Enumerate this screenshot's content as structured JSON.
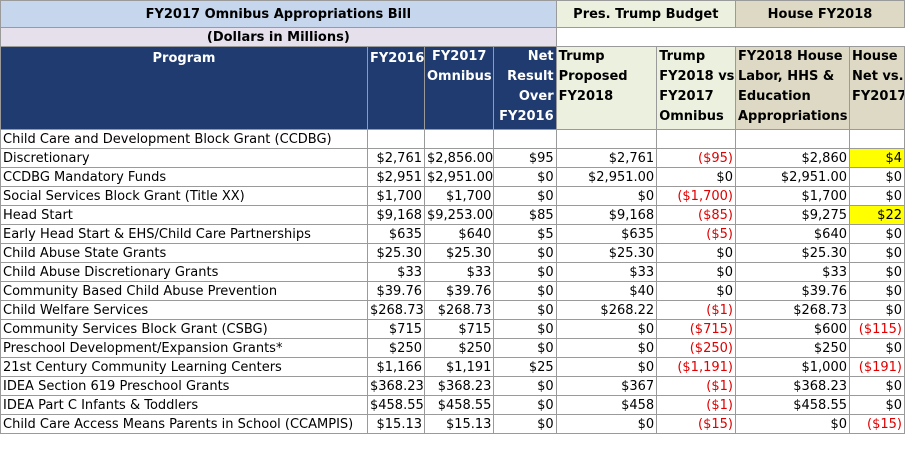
{
  "title_bar": {
    "omnibus": "FY2017 Omnibus Appropriations Bill",
    "trump": "Pres. Trump Budget",
    "house": "House FY2018"
  },
  "subtitle": "(Dollars in Millions)",
  "headers": {
    "program": "Program",
    "fy2016": "FY2016",
    "fy2017": [
      "FY2017",
      "Omnibus"
    ],
    "net": [
      "Net",
      "Result",
      "Over",
      "FY2016"
    ],
    "trump_proposed": [
      "Trump",
      "Proposed",
      "FY2018"
    ],
    "trump_vs": [
      "Trump",
      "FY2018 vs",
      "FY2017",
      "Omnibus"
    ],
    "house_labor": [
      "FY2018 House",
      "Labor, HHS &",
      "Education",
      "Appropriations"
    ],
    "house_net": [
      "House",
      "Net vs.",
      "FY2017"
    ]
  },
  "colors": {
    "header_blue": "#1f3b6f",
    "negative": "#e00000",
    "highlight": "#ffff00"
  },
  "rows": [
    {
      "program": "Child Care and Development Block Grant (CCDBG)",
      "cells": [
        "",
        "",
        "",
        "",
        "",
        "",
        ""
      ]
    },
    {
      "program": "Discretionary",
      "cells": [
        "$2,761",
        "$2,856.00",
        "$95",
        "$2,761",
        "($95)",
        "$2,860",
        "$4"
      ]
    },
    {
      "program": "CCDBG Mandatory Funds",
      "cells": [
        "$2,951",
        "$2,951.00",
        "$0",
        "$2,951.00",
        "$0",
        "$2,951.00",
        "$0"
      ]
    },
    {
      "program": "Social Services Block Grant (Title XX)",
      "cells": [
        "$1,700",
        "$1,700",
        "$0",
        "$0",
        "($1,700)",
        "$1,700",
        "$0"
      ]
    },
    {
      "program": "Head Start",
      "cells": [
        "$9,168",
        "$9,253.00",
        "$85",
        "$9,168",
        "($85)",
        "$9,275",
        "$22"
      ]
    },
    {
      "program": "Early Head Start & EHS/Child Care Partnerships",
      "cells": [
        "$635",
        "$640",
        "$5",
        "$635",
        "($5)",
        "$640",
        "$0"
      ]
    },
    {
      "program": "Child Abuse State Grants",
      "cells": [
        "$25.30",
        "$25.30",
        "$0",
        "$25.30",
        "$0",
        "$25.30",
        "$0"
      ]
    },
    {
      "program": "Child Abuse Discretionary Grants",
      "cells": [
        "$33",
        "$33",
        "$0",
        "$33",
        "$0",
        "$33",
        "$0"
      ]
    },
    {
      "program": "Community Based Child Abuse Prevention",
      "cells": [
        "$39.76",
        "$39.76",
        "$0",
        "$40",
        "$0",
        "$39.76",
        "$0"
      ]
    },
    {
      "program": "Child Welfare Services",
      "cells": [
        "$268.73",
        "$268.73",
        "$0",
        "$268.22",
        "($1)",
        "$268.73",
        "$0"
      ]
    },
    {
      "program": "Community Services Block Grant (CSBG)",
      "cells": [
        "$715",
        "$715",
        "$0",
        "$0",
        "($715)",
        "$600",
        "($115)"
      ]
    },
    {
      "program": "Preschool Development/Expansion Grants*",
      "cells": [
        "$250",
        "$250",
        "$0",
        "$0",
        "($250)",
        "$250",
        "$0"
      ]
    },
    {
      "program": "21st Century Community Learning Centers",
      "cells": [
        "$1,166",
        "$1,191",
        "$25",
        "$0",
        "($1,191)",
        "$1,000",
        "($191)"
      ]
    },
    {
      "program": "IDEA Section 619 Preschool Grants",
      "cells": [
        "$368.23",
        "$368.23",
        "$0",
        "$367",
        "($1)",
        "$368.23",
        "$0"
      ]
    },
    {
      "program": "IDEA Part C Infants & Toddlers",
      "cells": [
        "$458.55",
        "$458.55",
        "$0",
        "$458",
        "($1)",
        "$458.55",
        "$0"
      ]
    },
    {
      "program": "Child Care Access Means Parents in School (CCAMPIS)",
      "cells": [
        "$15.13",
        "$15.13",
        "$0",
        "$0",
        "($15)",
        "$0",
        "($15)"
      ]
    }
  ]
}
